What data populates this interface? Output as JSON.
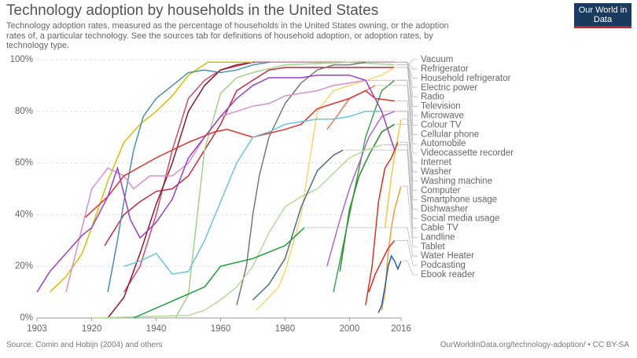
{
  "chart_data": {
    "type": "line",
    "title": "Technology adoption by households in the United States",
    "subtitle": "Technology adoption rates, measured as the percentage of households in the United States owning, or the adoption rates of, a particular technology. See the sources tab for definitions of household adoption, or adoption rates, by technology type.",
    "logo": "Our World in Data",
    "source": "Source: Comin and Hobijn (2004) and others",
    "url": "OurWorldInData.org/technology-adoption/ • CC BY-SA",
    "xlim": [
      1903,
      2016
    ],
    "xticks": [
      1903,
      1920,
      1940,
      1960,
      1980,
      2000,
      2016
    ],
    "ylim": [
      0,
      100
    ],
    "yticks": [
      {
        "value": 0,
        "label": "0%"
      },
      {
        "value": 20,
        "label": "20%"
      },
      {
        "value": 40,
        "label": "40%"
      },
      {
        "value": 60,
        "label": "60%"
      },
      {
        "value": 80,
        "label": "80%"
      },
      {
        "value": 100,
        "label": "100%"
      }
    ],
    "grid": true,
    "series": [
      {
        "name": "Vacuum",
        "color": "#c8283f",
        "x": [
          1924,
          1930,
          1935,
          1940,
          1945,
          1950,
          1955,
          1960,
          1965,
          1970,
          1975,
          1980,
          2014
        ],
        "values": [
          28,
          40,
          45,
          49,
          50,
          55,
          65,
          75,
          88,
          92,
          96,
          97,
          97
        ]
      },
      {
        "name": "Refrigerator",
        "color": "#d04a6a",
        "x": [
          1930,
          1935,
          1940,
          1945,
          1950,
          1955,
          1960,
          1970,
          1980
        ],
        "values": [
          10,
          20,
          40,
          65,
          85,
          92,
          96,
          99,
          99
        ]
      },
      {
        "name": "Household refrigerator",
        "color": "#8b1a2c",
        "x": [
          1925,
          1930,
          1935,
          1940,
          1945,
          1950,
          1955,
          1960,
          1965,
          1970,
          1980,
          2000,
          2014
        ],
        "values": [
          0,
          8,
          25,
          44,
          60,
          80,
          90,
          96,
          98,
          99,
          99,
          99,
          99
        ]
      },
      {
        "name": "Electric power",
        "color": "#d4c000",
        "x": [
          1907,
          1912,
          1917,
          1920,
          1925,
          1930,
          1935,
          1940,
          1945,
          1950,
          1956,
          1970
        ],
        "values": [
          10,
          16,
          25,
          35,
          53,
          68,
          75,
          80,
          86,
          94,
          99,
          99
        ]
      },
      {
        "name": "Radio",
        "color": "#4a8fb0",
        "x": [
          1925,
          1928,
          1930,
          1933,
          1936,
          1940,
          1945,
          1950,
          1955,
          1960,
          1965,
          1970,
          1975
        ],
        "values": [
          10,
          30,
          45,
          65,
          78,
          85,
          90,
          95,
          96,
          95,
          96,
          98,
          99
        ]
      },
      {
        "name": "Television",
        "color": "#a6cf8a",
        "x": [
          1946,
          1950,
          1955,
          1960,
          1965,
          1970,
          1980,
          2000,
          2014
        ],
        "values": [
          0,
          9,
          65,
          87,
          93,
          95,
          98,
          99,
          98
        ]
      },
      {
        "name": "Microwave",
        "color": "#f5d76e",
        "x": [
          1971,
          1975,
          1978,
          1980,
          1985,
          1990,
          1995,
          2000,
          2005,
          2010,
          2014
        ],
        "values": [
          3,
          8,
          12,
          18,
          40,
          80,
          88,
          90,
          92,
          94,
          97
        ]
      },
      {
        "name": "Colour TV",
        "color": "#777777",
        "x": [
          1965,
          1968,
          1970,
          1972,
          1975,
          1980,
          1985,
          1990,
          1995,
          2000,
          2005
        ],
        "values": [
          5,
          20,
          40,
          55,
          70,
          83,
          91,
          96,
          98,
          98,
          99
        ]
      },
      {
        "name": "Cellular phone",
        "color": "#3fa34d",
        "x": [
          1995,
          2000,
          2005,
          2010,
          2014
        ],
        "values": [
          10,
          40,
          70,
          88,
          92
        ]
      },
      {
        "name": "Automobile",
        "color": "#d98fd0",
        "x": [
          1912,
          1915,
          1920,
          1925,
          1930,
          1933,
          1938,
          1945,
          1950,
          1955,
          1960,
          1965,
          1970,
          1975,
          1980,
          1985,
          1990,
          1995,
          2000,
          2005
        ],
        "values": [
          10,
          25,
          50,
          58,
          55,
          50,
          55,
          55,
          60,
          70,
          78,
          80,
          82,
          83,
          86,
          87,
          88,
          90,
          91,
          92
        ]
      },
      {
        "name": "Videocassette recorder",
        "color": "#e57c5a",
        "x": [
          1993,
          1996,
          2000,
          2005,
          2008
        ],
        "values": [
          73,
          78,
          85,
          88,
          90
        ]
      },
      {
        "name": "Internet",
        "color": "#2e8b2e",
        "x": [
          1997,
          2000,
          2003,
          2006,
          2010,
          2014
        ],
        "values": [
          18,
          42,
          55,
          63,
          72,
          75
        ]
      },
      {
        "name": "Washer",
        "color": "#e0302a",
        "x": [
          1918,
          1925,
          1930,
          1940,
          1950,
          1958,
          1962,
          1970,
          1980,
          1985,
          1990,
          1995,
          2000,
          2005,
          2008,
          2014
        ],
        "values": [
          39,
          47,
          55,
          62,
          68,
          72,
          73,
          70,
          73,
          75,
          81,
          83,
          85,
          88,
          85,
          84
        ]
      },
      {
        "name": "Washing machine",
        "color": "#6cc5d6",
        "x": [
          1930,
          1935,
          1940,
          1945,
          1950,
          1955,
          1960,
          1965,
          1970,
          1975,
          1980,
          1985,
          1990,
          1995,
          2000,
          2005,
          2010
        ],
        "values": [
          20,
          22,
          25,
          17,
          18,
          30,
          45,
          60,
          70,
          72,
          75,
          76,
          77,
          77,
          78,
          80,
          80
        ]
      },
      {
        "name": "Computer",
        "color": "#b066c6",
        "x": [
          1993,
          1997,
          2000,
          2003,
          2006,
          2010,
          2014
        ],
        "values": [
          20,
          38,
          50,
          60,
          70,
          78,
          80
        ]
      },
      {
        "name": "Smartphone usage",
        "color": "#f5c842",
        "x": [
          2011,
          2012,
          2013,
          2014,
          2016
        ],
        "values": [
          35,
          45,
          55,
          63,
          77
        ]
      },
      {
        "name": "Dishwasher",
        "color": "#b5d89b",
        "x": [
          1920,
          1950,
          1955,
          1960,
          1965,
          1970,
          1975,
          1980,
          1985,
          1990,
          1995,
          2000,
          2005,
          2010
        ],
        "values": [
          0,
          1,
          3,
          7,
          12,
          20,
          33,
          43,
          47,
          50,
          56,
          62,
          65,
          67
        ]
      },
      {
        "name": "Social media usage",
        "color": "#d93025",
        "x": [
          2005,
          2007,
          2009,
          2011,
          2013,
          2015
        ],
        "values": [
          5,
          20,
          45,
          58,
          62,
          68
        ]
      },
      {
        "name": "Cable TV",
        "color": "#4f6b80",
        "x": [
          1970,
          1975,
          1980,
          1985,
          1990,
          1995,
          1998
        ],
        "values": [
          7,
          13,
          23,
          43,
          57,
          63,
          65
        ]
      },
      {
        "name": "Landline",
        "color": "#9b3fc6",
        "x": [
          1903,
          1907,
          1912,
          1917,
          1920,
          1925,
          1928,
          1932,
          1935,
          1940,
          1945,
          1950,
          1955,
          1960,
          1965,
          1970,
          1975,
          1980,
          1985,
          1990,
          1995,
          2000,
          2005,
          2010,
          2014
        ],
        "values": [
          10,
          18,
          25,
          32,
          35,
          47,
          58,
          38,
          31,
          37,
          46,
          62,
          70,
          78,
          85,
          90,
          93,
          93,
          93,
          94,
          94,
          94,
          92,
          80,
          65
        ]
      },
      {
        "name": "Tablet",
        "color": "#f39c32",
        "x": [
          2010,
          2011,
          2012,
          2013,
          2014,
          2016
        ],
        "values": [
          3,
          10,
          25,
          35,
          42,
          51
        ]
      },
      {
        "name": "Water Heater",
        "color": "#1b9e3a",
        "x": [
          1933,
          1955,
          1960,
          1970,
          1980,
          1986
        ],
        "values": [
          0,
          12,
          20,
          23,
          28,
          35
        ]
      },
      {
        "name": "Podcasting",
        "color": "#e8252a",
        "x": [
          2006,
          2008,
          2010,
          2012,
          2014
        ],
        "values": [
          10,
          17,
          22,
          27,
          30
        ]
      },
      {
        "name": "Ebook reader",
        "color": "#2a5aa8",
        "x": [
          2009,
          2010,
          2011,
          2012,
          2013,
          2014,
          2015,
          2016
        ],
        "values": [
          2,
          5,
          12,
          20,
          24,
          22,
          19,
          22
        ]
      }
    ]
  }
}
